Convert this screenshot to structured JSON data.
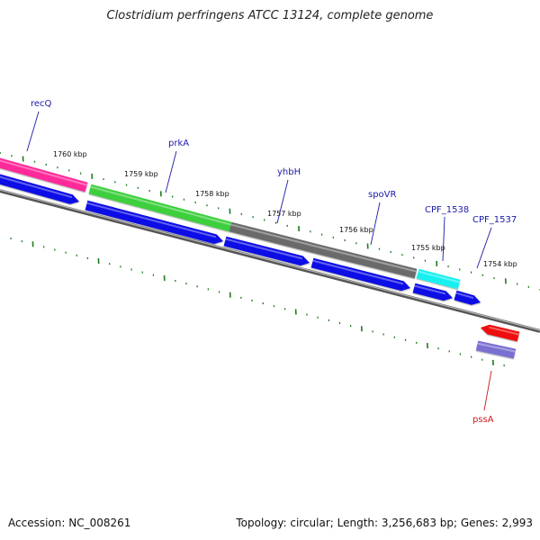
{
  "title": "Clostridium perfringens ATCC 13124, complete genome",
  "accession": "Accession: NC_008261",
  "summary": "Topology: circular; Length: 3,256,683 bp; Genes: 2,993",
  "kbp_labels": [
    "1760 kbp",
    "1759 kbp",
    "1758 kbp",
    "1757 kbp",
    "1756 kbp",
    "1755 kbp",
    "1754 kbp"
  ],
  "genes": [
    {
      "name": "recQ",
      "color": "#1a1aa8"
    },
    {
      "name": "prkA",
      "color": "#1a1aa8"
    },
    {
      "name": "yhbH",
      "color": "#1a1aa8"
    },
    {
      "name": "spoVR",
      "color": "#1a1aa8"
    },
    {
      "name": "CPF_1538",
      "color": "#1a1aa8"
    },
    {
      "name": "CPF_1537",
      "color": "#1a1aa8"
    },
    {
      "name": "pssA",
      "color": "#cc1a1a"
    }
  ],
  "colors": {
    "backbone": "#7a7a7a",
    "tick": "#1f7a1f",
    "pink": "#ff2a9a",
    "green": "#3ccf3c",
    "grey": "#6a6a6a",
    "cyan": "#16f0f0",
    "blue": "#0f0fe6",
    "red": "#f00e0e",
    "purple": "#7a70d2"
  }
}
